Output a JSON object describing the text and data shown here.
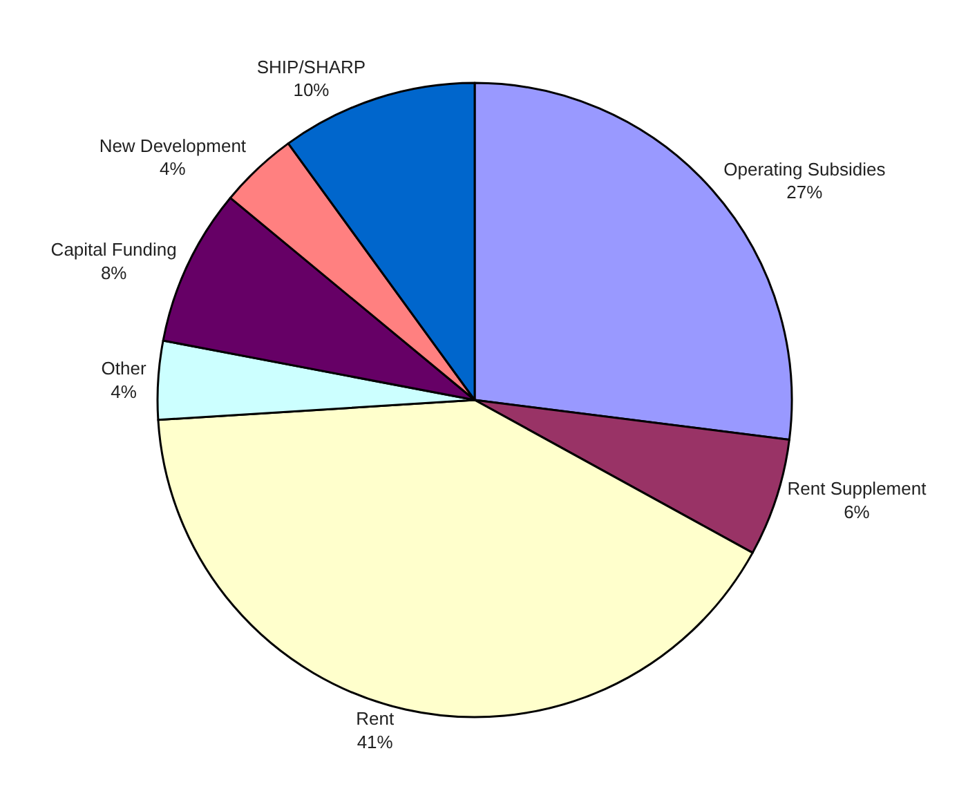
{
  "chart_data": {
    "type": "pie",
    "categories": [
      "Operating Subsidies",
      "Rent Supplement",
      "Rent",
      "Other",
      "Capital Funding",
      "New Development",
      "SHIP/SHARP"
    ],
    "values": [
      27,
      6,
      41,
      4,
      8,
      4,
      10
    ],
    "value_labels": [
      "27%",
      "6%",
      "41%",
      "4%",
      "8%",
      "4%",
      "10%"
    ],
    "colors": [
      "#9999ff",
      "#993366",
      "#ffffcc",
      "#ccffff",
      "#660066",
      "#ff8080",
      "#0066cc"
    ],
    "legend": false
  }
}
